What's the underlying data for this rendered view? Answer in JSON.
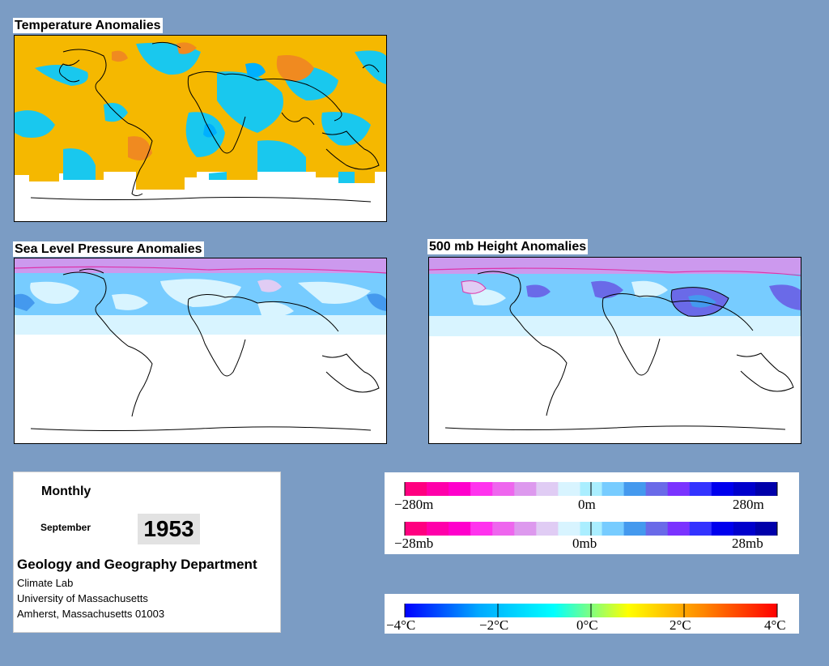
{
  "maps": {
    "temperature": {
      "title": "Temperature Anomalies"
    },
    "pressure": {
      "title": "Sea Level Pressure Anomalies"
    },
    "height": {
      "title": "500 mb Height Anomalies"
    }
  },
  "info": {
    "period": "Monthly",
    "month": "September",
    "year": "1953",
    "department": "Geology and Geography Department",
    "lab": "Climate Lab",
    "university": "University of Massachusetts",
    "address": "Amherst, Massachusetts 01003"
  },
  "legends": {
    "height": {
      "labels": [
        "−280m",
        "0m",
        "280m"
      ],
      "colors": [
        "#ff0080",
        "#ff00aa",
        "#ff00cc",
        "#ff33ee",
        "#ee66ee",
        "#dd99ee",
        "#e0ccf4",
        "#d8f4ff",
        "#aaeeff",
        "#77ccff",
        "#4499ee",
        "#6a6ae8",
        "#7a33ff",
        "#3333ff",
        "#0000ee",
        "#0000cc",
        "#0000aa"
      ]
    },
    "pressure": {
      "labels": [
        "−28mb",
        "0mb",
        "28mb"
      ],
      "colors": [
        "#ff0080",
        "#ff00aa",
        "#ff00cc",
        "#ff33ee",
        "#ee66ee",
        "#dd99ee",
        "#e0ccf4",
        "#d8f4ff",
        "#aaeeff",
        "#77ccff",
        "#4499ee",
        "#6a6ae8",
        "#7a33ff",
        "#3333ff",
        "#0000ee",
        "#0000cc",
        "#0000aa"
      ]
    },
    "temperature": {
      "labels": [
        "−4°C",
        "−2°C",
        "0°C",
        "2°C",
        "4°C"
      ],
      "gradient": [
        "#0000ff",
        "#00aaff",
        "#00ffff",
        "#ffff00",
        "#ff8800",
        "#ff0000"
      ]
    }
  },
  "colors": {
    "background": "#7b9cc4",
    "warm": "#f5b800",
    "warm_strong": "#f08a20",
    "cool": "#19c8ee",
    "cool_strong": "#00b0ff",
    "light_cyan": "#d8f4ff",
    "mid_blue": "#4499ee",
    "lavender": "#cc99ee"
  }
}
